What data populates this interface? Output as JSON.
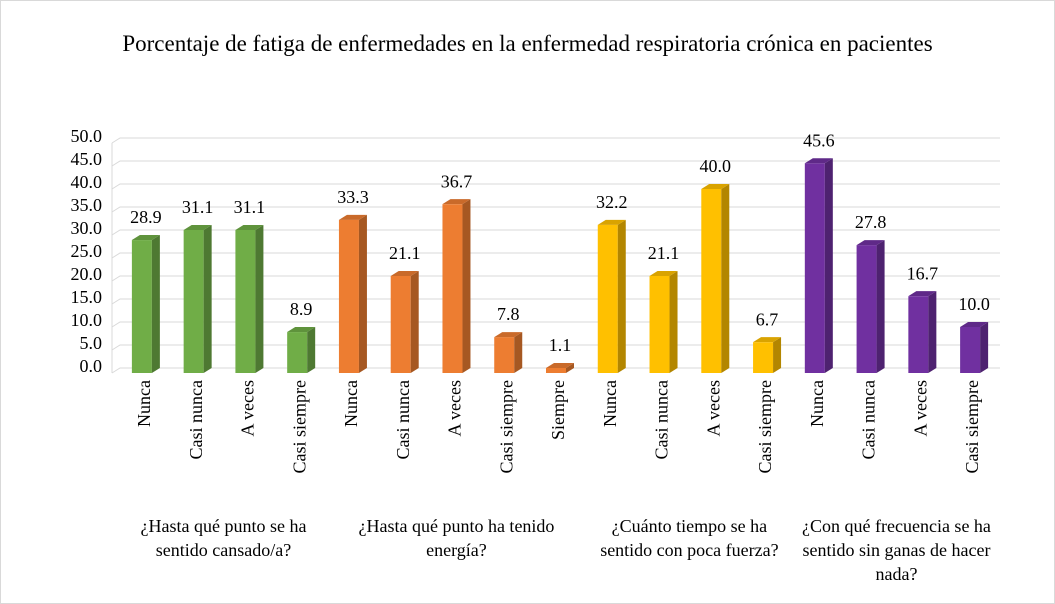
{
  "chart_data": {
    "type": "bar",
    "title": "Porcentaje de fatiga de enfermedades en la enfermedad respiratoria crónica en pacientes",
    "ylim": [
      0,
      50
    ],
    "yticks": [
      {
        "value": 0,
        "label": "0.0"
      },
      {
        "value": 5,
        "label": "5.0"
      },
      {
        "value": 10,
        "label": "10.0"
      },
      {
        "value": 15,
        "label": "15.0"
      },
      {
        "value": 20,
        "label": "20.0"
      },
      {
        "value": 25,
        "label": "25.0"
      },
      {
        "value": 30,
        "label": "30.0"
      },
      {
        "value": 35,
        "label": "35.0"
      },
      {
        "value": 40,
        "label": "40.0"
      },
      {
        "value": 45,
        "label": "45.0"
      },
      {
        "value": 50,
        "label": "50.0"
      }
    ],
    "grid": true,
    "groups": [
      {
        "name": "¿Hasta qué punto se ha sentido cansado/a?",
        "color": "#70ad47",
        "categories": [
          "Nunca",
          "Casi nunca",
          "A veces",
          "Casi siempre"
        ],
        "values": [
          28.9,
          31.1,
          31.1,
          8.9
        ],
        "value_labels": [
          "28.9",
          "31.1",
          "31.1",
          "8.9"
        ]
      },
      {
        "name": "¿Hasta qué punto ha tenido energía?",
        "color": "#ed7d31",
        "categories": [
          "Nunca",
          "Casi nunca",
          "A veces",
          "Casi siempre",
          "Siempre"
        ],
        "values": [
          33.3,
          21.1,
          36.7,
          7.8,
          1.1
        ],
        "value_labels": [
          "33.3",
          "21.1",
          "36.7",
          "7.8",
          "1.1"
        ]
      },
      {
        "name": "¿Cuánto tiempo se ha sentido con poca fuerza?",
        "color": "#ffc000",
        "categories": [
          "Nunca",
          "Casi nunca",
          "A veces",
          "Casi siempre"
        ],
        "values": [
          32.2,
          21.1,
          40,
          6.7
        ],
        "value_labels": [
          "32.2",
          "21.1",
          "40.0",
          "6.7"
        ]
      },
      {
        "name": "¿Con qué frecuencia se ha sentido sin ganas de hacer nada?",
        "color": "#7030a0",
        "categories": [
          "Nunca",
          "Casi nunca",
          "A veces",
          "Casi siempre"
        ],
        "values": [
          45.6,
          27.8,
          16.7,
          10
        ],
        "value_labels": [
          "45.6",
          "27.8",
          "16.7",
          "10.0"
        ]
      }
    ]
  }
}
